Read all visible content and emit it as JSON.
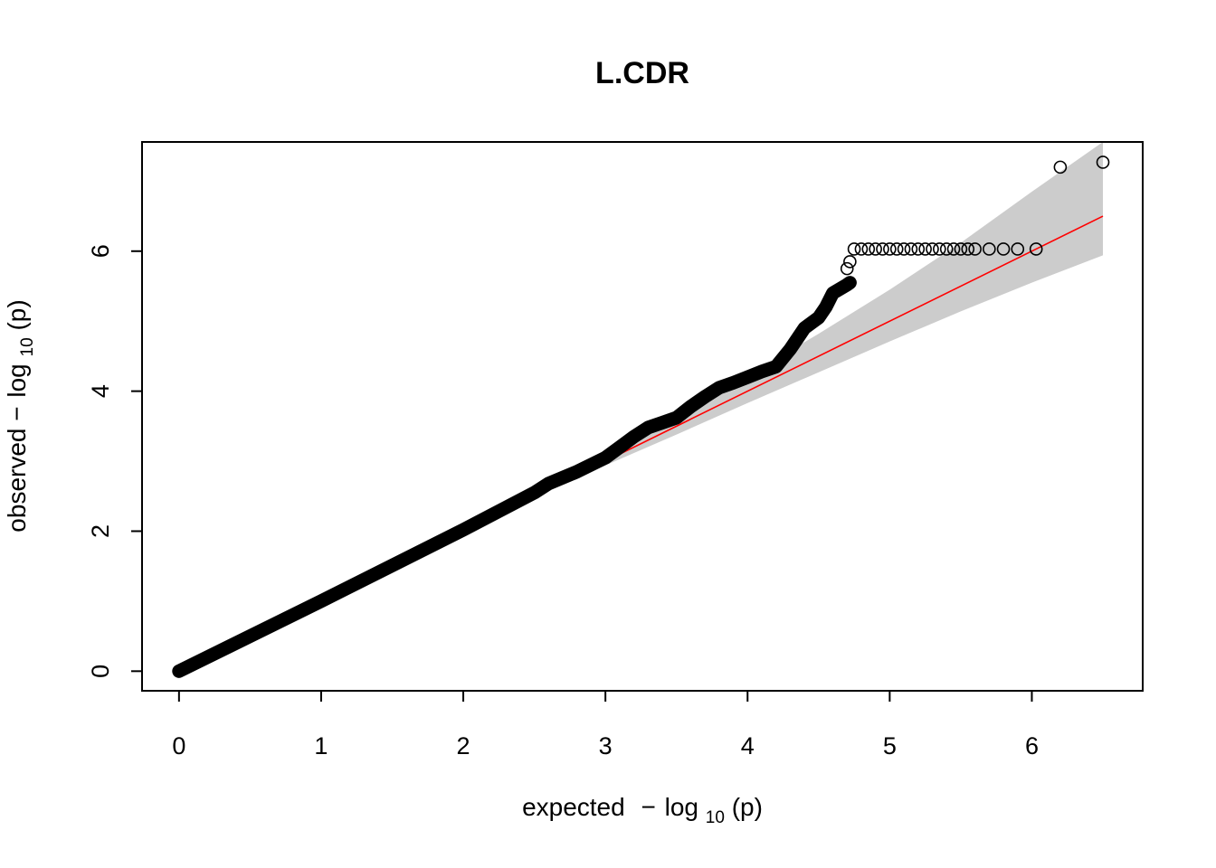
{
  "chart_data": {
    "type": "scatter",
    "title": "L.CDR",
    "xlabel": {
      "prefix": "expected",
      "minus": "−",
      "log": "log",
      "base": "10",
      "arg": "(p)"
    },
    "ylabel": {
      "prefix": "observed",
      "minus": "−",
      "log": "log",
      "base": "10",
      "arg": "(p)"
    },
    "xlim": [
      -0.26,
      6.78
    ],
    "ylim": [
      -0.28,
      7.56
    ],
    "x_ticks": [
      0,
      1,
      2,
      3,
      4,
      5,
      6
    ],
    "y_ticks": [
      0,
      2,
      4,
      6
    ],
    "reference_line": {
      "x": [
        0,
        6.5
      ],
      "y": [
        0,
        6.5
      ],
      "color": "#ff0000"
    },
    "confidence_band": {
      "x": [
        2.6,
        3.0,
        3.5,
        4.0,
        4.5,
        5.0,
        5.5,
        6.0,
        6.5
      ],
      "lower": [
        2.59,
        2.94,
        3.38,
        3.83,
        4.27,
        4.71,
        5.14,
        5.55,
        5.94
      ],
      "upper": [
        2.62,
        3.08,
        3.64,
        4.22,
        4.82,
        5.45,
        6.12,
        6.85,
        7.56
      ],
      "color": "#cccccc"
    },
    "observed_curve": {
      "x": [
        0,
        1.0,
        2.0,
        2.5,
        2.6,
        2.8,
        3.0,
        3.1,
        3.2,
        3.3,
        3.4,
        3.5,
        3.6,
        3.7,
        3.8,
        3.9,
        4.0,
        4.1,
        4.2,
        4.3,
        4.4,
        4.5,
        4.55,
        4.6,
        4.7,
        4.72
      ],
      "y": [
        0,
        1.0,
        2.02,
        2.55,
        2.68,
        2.85,
        3.05,
        3.2,
        3.35,
        3.48,
        3.55,
        3.62,
        3.78,
        3.92,
        4.05,
        4.12,
        4.2,
        4.28,
        4.35,
        4.6,
        4.9,
        5.05,
        5.2,
        5.4,
        5.52,
        5.55
      ]
    },
    "points": {
      "x": [
        4.7,
        4.72,
        4.75,
        4.8,
        4.85,
        4.9,
        4.95,
        5.0,
        5.05,
        5.1,
        5.15,
        5.2,
        5.25,
        5.3,
        5.35,
        5.4,
        5.45,
        5.5,
        5.55,
        5.6,
        5.7,
        5.8,
        5.9,
        6.03,
        6.2,
        6.5
      ],
      "y": [
        5.75,
        5.85,
        6.03,
        6.03,
        6.03,
        6.03,
        6.03,
        6.03,
        6.03,
        6.03,
        6.03,
        6.03,
        6.03,
        6.03,
        6.03,
        6.03,
        6.03,
        6.03,
        6.03,
        6.03,
        6.03,
        6.03,
        6.03,
        6.03,
        7.2,
        7.27
      ]
    },
    "grid": false,
    "legend": "none"
  }
}
